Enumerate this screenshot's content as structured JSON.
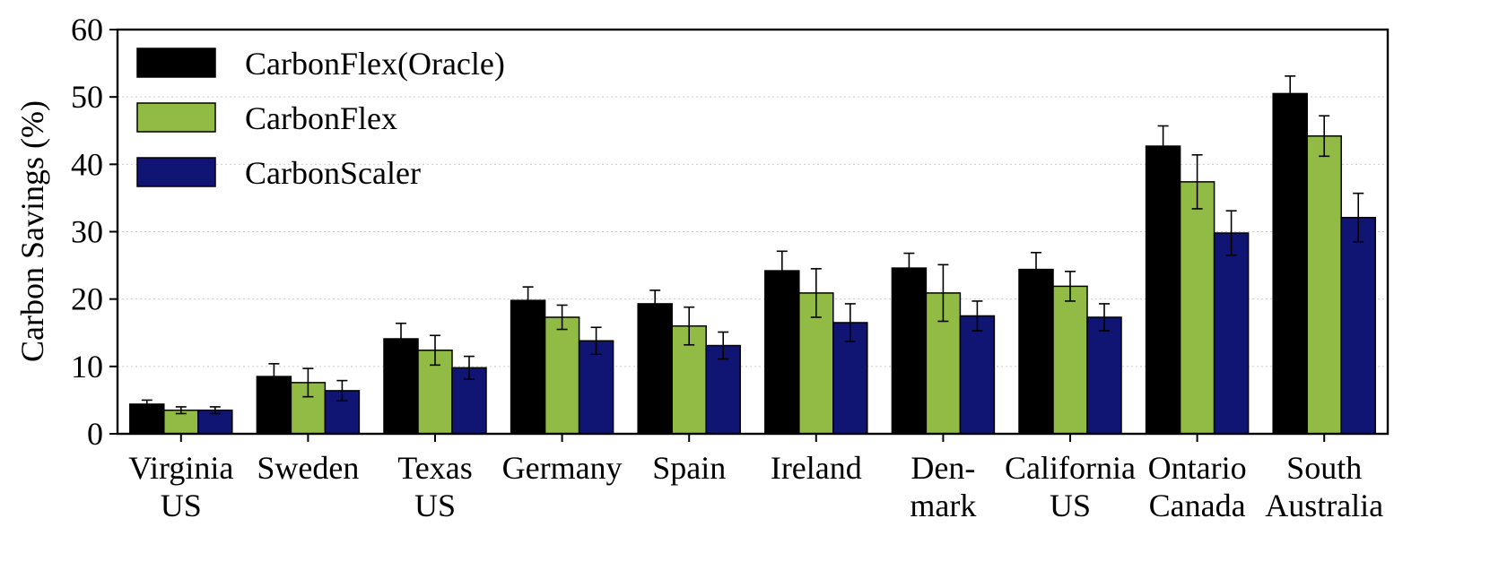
{
  "chart_data": {
    "type": "bar",
    "title": "",
    "xlabel": "",
    "ylabel": "Carbon Savings (%)",
    "ylim": [
      0,
      60
    ],
    "yticks": [
      0,
      10,
      20,
      30,
      40,
      50,
      60
    ],
    "grid": "horizontal-dotted",
    "legend_position": "top-left",
    "categories": [
      [
        "Virginia",
        "US"
      ],
      [
        "Sweden"
      ],
      [
        "Texas",
        "US"
      ],
      [
        "Germany"
      ],
      [
        "Spain"
      ],
      [
        "Ireland"
      ],
      [
        "Den-",
        "mark"
      ],
      [
        "California",
        "US"
      ],
      [
        "Ontario",
        "Canada"
      ],
      [
        "South",
        "Australia"
      ]
    ],
    "series": [
      {
        "name": "CarbonFlex(Oracle)",
        "color": "#000000",
        "values": [
          4.4,
          8.5,
          14.1,
          19.8,
          19.3,
          24.2,
          24.6,
          24.4,
          42.7,
          50.5
        ],
        "errors": [
          0.6,
          1.9,
          2.3,
          2.0,
          2.0,
          2.9,
          2.2,
          2.5,
          3.0,
          2.6
        ]
      },
      {
        "name": "CarbonFlex",
        "color": "#92bb45",
        "values": [
          3.5,
          7.6,
          12.4,
          17.3,
          16.0,
          20.9,
          20.9,
          21.9,
          37.4,
          44.2
        ],
        "errors": [
          0.5,
          2.1,
          2.2,
          1.8,
          2.8,
          3.6,
          4.2,
          2.2,
          4.0,
          3.0
        ]
      },
      {
        "name": "CarbonScaler",
        "color": "#101574",
        "values": [
          3.5,
          6.4,
          9.8,
          13.8,
          13.1,
          16.5,
          17.5,
          17.3,
          29.8,
          32.1
        ],
        "errors": [
          0.5,
          1.5,
          1.7,
          2.0,
          2.0,
          2.8,
          2.2,
          2.0,
          3.3,
          3.6
        ]
      }
    ]
  }
}
